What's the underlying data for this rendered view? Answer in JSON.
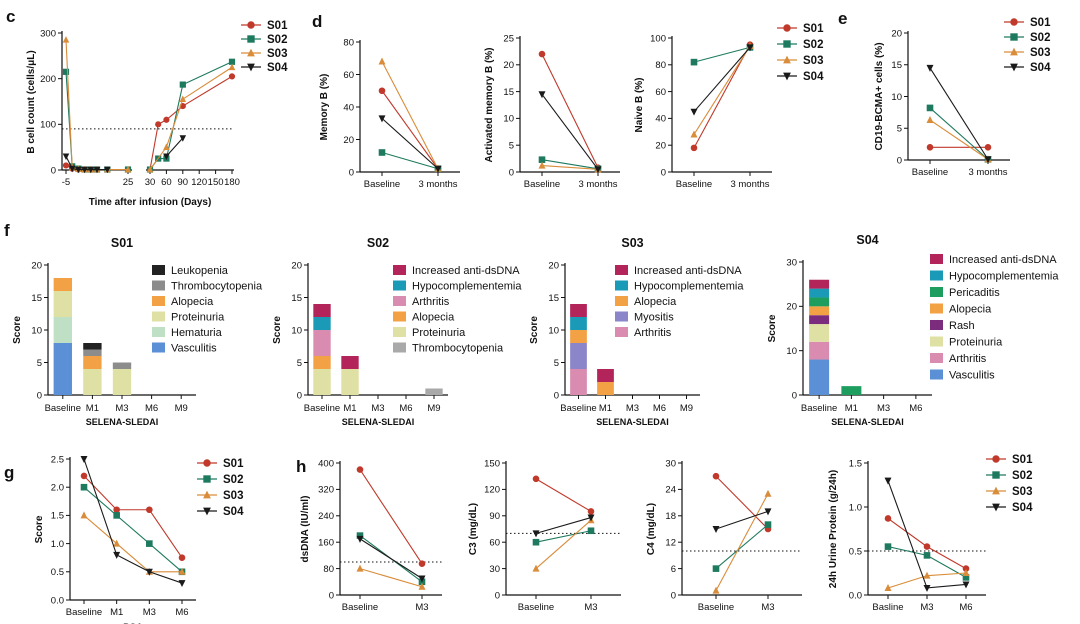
{
  "panel_labels": [
    "c",
    "d",
    "e",
    "f",
    "g",
    "h"
  ],
  "colors": {
    "S01": "#c0392b",
    "S02": "#1e7a5f",
    "S03": "#d98c3a",
    "S04": "#1a1a1a",
    "dotted_reference": "#111111"
  },
  "marker_shapes": {
    "S01": "circle",
    "S02": "square",
    "S03": "triangle-up",
    "S04": "triangle-down"
  },
  "chart_data": [
    {
      "id": "c",
      "type": "line",
      "xlabel": "Time after infusion (Days)",
      "ylabel": "B cell count (cells/μL)",
      "x_axis": "broken",
      "x_segments": [
        [
          -5,
          25
        ],
        [
          30,
          180
        ]
      ],
      "xticks": [
        "-5",
        "25",
        "30",
        "60",
        "90",
        "120",
        "150",
        "180"
      ],
      "yticks": [
        "0",
        "100",
        "200",
        "300"
      ],
      "ylim": [
        0,
        300
      ],
      "reference_line": 90,
      "legend": "right",
      "series": [
        {
          "name": "S01",
          "points": [
            [
              -5,
              10
            ],
            [
              -2,
              3
            ],
            [
              1,
              1
            ],
            [
              4,
              1
            ],
            [
              7,
              1
            ],
            [
              10,
              1
            ],
            [
              15,
              1
            ],
            [
              25,
              1
            ],
            [
              30,
              1
            ],
            [
              45,
              100
            ],
            [
              60,
              110
            ],
            [
              90,
              140
            ],
            [
              180,
              205
            ]
          ]
        },
        {
          "name": "S02",
          "points": [
            [
              -5,
              215
            ],
            [
              -2,
              8
            ],
            [
              1,
              3
            ],
            [
              4,
              1
            ],
            [
              7,
              1
            ],
            [
              10,
              1
            ],
            [
              15,
              1
            ],
            [
              25,
              1
            ],
            [
              30,
              1
            ],
            [
              45,
              25
            ],
            [
              60,
              25
            ],
            [
              90,
              187
            ],
            [
              180,
              237
            ]
          ]
        },
        {
          "name": "S03",
          "points": [
            [
              -5,
              285
            ],
            [
              -2,
              5
            ],
            [
              1,
              2
            ],
            [
              4,
              1
            ],
            [
              7,
              1
            ],
            [
              10,
              1
            ],
            [
              15,
              1
            ],
            [
              25,
              1
            ],
            [
              30,
              1
            ],
            [
              60,
              50
            ],
            [
              90,
              155
            ],
            [
              180,
              225
            ]
          ]
        },
        {
          "name": "S04",
          "points": [
            [
              -5,
              30
            ],
            [
              -2,
              3
            ],
            [
              1,
              1
            ],
            [
              4,
              1
            ],
            [
              7,
              1
            ],
            [
              10,
              1
            ],
            [
              15,
              1
            ],
            [
              60,
              30
            ],
            [
              90,
              70
            ]
          ]
        }
      ]
    },
    {
      "id": "d1",
      "type": "line",
      "categories": [
        "Baseline",
        "3 months"
      ],
      "ylabel": "Memory B (%)",
      "yticks": [
        "0",
        "20",
        "40",
        "60",
        "80"
      ],
      "ylim": [
        0,
        80
      ],
      "series": [
        {
          "name": "S01",
          "values": [
            50,
            2
          ]
        },
        {
          "name": "S02",
          "values": [
            12,
            2
          ]
        },
        {
          "name": "S03",
          "values": [
            68,
            2
          ]
        },
        {
          "name": "S04",
          "values": [
            33,
            2
          ]
        }
      ]
    },
    {
      "id": "d2",
      "type": "line",
      "categories": [
        "Baseline",
        "3 months"
      ],
      "ylabel": "Activated memory B (%)",
      "yticks": [
        "0",
        "5",
        "10",
        "15",
        "20",
        "25"
      ],
      "ylim": [
        0,
        25
      ],
      "series": [
        {
          "name": "S01",
          "values": [
            22,
            0.8
          ]
        },
        {
          "name": "S02",
          "values": [
            2.3,
            0.6
          ]
        },
        {
          "name": "S03",
          "values": [
            1.2,
            0.5
          ]
        },
        {
          "name": "S04",
          "values": [
            14.5,
            0.5
          ]
        }
      ]
    },
    {
      "id": "d3",
      "type": "line",
      "categories": [
        "Baseline",
        "3 months"
      ],
      "ylabel": "Naive B (%)",
      "yticks": [
        "0",
        "20",
        "40",
        "60",
        "80",
        "100"
      ],
      "ylim": [
        0,
        100
      ],
      "legend": "right",
      "series": [
        {
          "name": "S01",
          "values": [
            18,
            95
          ]
        },
        {
          "name": "S02",
          "values": [
            82,
            93
          ]
        },
        {
          "name": "S03",
          "values": [
            28,
            94
          ]
        },
        {
          "name": "S04",
          "values": [
            45,
            93
          ]
        }
      ]
    },
    {
      "id": "e",
      "type": "line",
      "categories": [
        "Baseline",
        "3 months"
      ],
      "ylabel": "CD19-BCMA+ cells (%)",
      "yticks": [
        "0",
        "5",
        "10",
        "15",
        "20"
      ],
      "ylim": [
        0,
        20
      ],
      "legend": "right",
      "series": [
        {
          "name": "S01",
          "values": [
            2,
            2
          ]
        },
        {
          "name": "S02",
          "values": [
            8.2,
            0.1
          ]
        },
        {
          "name": "S03",
          "values": [
            6.3,
            0.1
          ]
        },
        {
          "name": "S04",
          "values": [
            14.5,
            0.1
          ]
        }
      ]
    },
    {
      "id": "f-S01",
      "type": "bar",
      "title": "S01",
      "xlabel": "SELENA-SLEDAI",
      "ylabel": "Score",
      "categories": [
        "Baseline",
        "M1",
        "M3",
        "M6",
        "M9"
      ],
      "yticks": [
        "0",
        "5",
        "10",
        "15",
        "20"
      ],
      "ylim": [
        0,
        20
      ],
      "stack_order": [
        "Vasculitis",
        "Hematuria",
        "Proteinuria",
        "Alopecia",
        "Thrombocytopenia",
        "Leukopenia"
      ],
      "series": [
        {
          "name": "Leukopenia",
          "color": "#222222",
          "values": [
            0,
            1,
            0,
            0,
            0
          ]
        },
        {
          "name": "Thrombocytopenia",
          "color": "#8c8c8c",
          "values": [
            0,
            1,
            1,
            0,
            0
          ]
        },
        {
          "name": "Alopecia",
          "color": "#f2a144",
          "values": [
            2,
            2,
            0,
            0,
            0
          ]
        },
        {
          "name": "Proteinuria",
          "color": "#dfe0a3",
          "values": [
            4,
            4,
            4,
            0,
            0
          ]
        },
        {
          "name": "Hematuria",
          "color": "#bfe0c4",
          "values": [
            4,
            0,
            0,
            0,
            0
          ]
        },
        {
          "name": "Vasculitis",
          "color": "#5b8fd6",
          "values": [
            8,
            0,
            0,
            0,
            0
          ]
        }
      ]
    },
    {
      "id": "f-S02",
      "type": "bar",
      "title": "S02",
      "xlabel": "SELENA-SLEDAI",
      "ylabel": "Score",
      "categories": [
        "Baseline",
        "M1",
        "M3",
        "M6",
        "M9"
      ],
      "yticks": [
        "0",
        "5",
        "10",
        "15",
        "20"
      ],
      "ylim": [
        0,
        20
      ],
      "stack_order": [
        "Proteinuria",
        "Alopecia",
        "Arthritis",
        "Hypocomplementemia",
        "Increased anti-dsDNA",
        "Thrombocytopenia"
      ],
      "series": [
        {
          "name": "Increased anti-dsDNA",
          "color": "#b3245a",
          "values": [
            2,
            2,
            0,
            0,
            0
          ]
        },
        {
          "name": "Hypocomplementemia",
          "color": "#1b9ab8",
          "values": [
            2,
            0,
            0,
            0,
            0
          ]
        },
        {
          "name": "Arthritis",
          "color": "#d98bb0",
          "values": [
            4,
            0,
            0,
            0,
            0
          ]
        },
        {
          "name": "Alopecia",
          "color": "#f2a144",
          "values": [
            2,
            0,
            0,
            0,
            0
          ]
        },
        {
          "name": "Proteinuria",
          "color": "#dfe0a3",
          "values": [
            4,
            4,
            0,
            0,
            0
          ]
        },
        {
          "name": "Thrombocytopenia",
          "color": "#a9a9a9",
          "values": [
            0,
            0,
            0,
            0,
            1
          ]
        }
      ]
    },
    {
      "id": "f-S03",
      "type": "bar",
      "title": "S03",
      "xlabel": "SELENA-SLEDAI",
      "ylabel": "Score",
      "categories": [
        "Baseline",
        "M1",
        "M3",
        "M6",
        "M9"
      ],
      "yticks": [
        "0",
        "5",
        "10",
        "15",
        "20"
      ],
      "ylim": [
        0,
        20
      ],
      "stack_order": [
        "Arthritis",
        "Myositis",
        "Alopecia",
        "Hypocomplementemia",
        "Increased anti-dsDNA"
      ],
      "series": [
        {
          "name": "Increased anti-dsDNA",
          "color": "#b3245a",
          "values": [
            2,
            2,
            0,
            0,
            0
          ]
        },
        {
          "name": "Hypocomplementemia",
          "color": "#1b9ab8",
          "values": [
            2,
            0,
            0,
            0,
            0
          ]
        },
        {
          "name": "Alopecia",
          "color": "#f2a144",
          "values": [
            2,
            2,
            0,
            0,
            0
          ]
        },
        {
          "name": "Myositis",
          "color": "#8a86c9",
          "values": [
            4,
            0,
            0,
            0,
            0
          ]
        },
        {
          "name": "Arthritis",
          "color": "#d98bb0",
          "values": [
            4,
            0,
            0,
            0,
            0
          ]
        }
      ]
    },
    {
      "id": "f-S04",
      "type": "bar",
      "title": "S04",
      "xlabel": "SELENA-SLEDAI",
      "ylabel": "Score",
      "categories": [
        "Baseline",
        "M1",
        "M3",
        "M6"
      ],
      "yticks": [
        "0",
        "10",
        "20",
        "30"
      ],
      "ylim": [
        0,
        30
      ],
      "stack_order": [
        "Vasculitis",
        "Arthritis",
        "Proteinuria",
        "Rash",
        "Alopecia",
        "Pericaditis",
        "Hypocomplementemia",
        "Increased anti-dsDNA"
      ],
      "series": [
        {
          "name": "Increased anti-dsDNA",
          "color": "#b3245a",
          "values": [
            2,
            0,
            0,
            0
          ]
        },
        {
          "name": "Hypocomplementemia",
          "color": "#1b9ab8",
          "values": [
            2,
            0,
            0,
            0
          ]
        },
        {
          "name": "Pericaditis",
          "color": "#1e9e5e",
          "values": [
            2,
            2,
            0,
            0
          ]
        },
        {
          "name": "Alopecia",
          "color": "#f2a144",
          "values": [
            2,
            0,
            0,
            0
          ]
        },
        {
          "name": "Rash",
          "color": "#7b2c7d",
          "values": [
            2,
            0,
            0,
            0
          ]
        },
        {
          "name": "Proteinuria",
          "color": "#dfe0a3",
          "values": [
            4,
            0,
            0,
            0
          ]
        },
        {
          "name": "Arthritis",
          "color": "#d98bb0",
          "values": [
            4,
            0,
            0,
            0
          ]
        },
        {
          "name": "Vasculitis",
          "color": "#5b8fd6",
          "values": [
            8,
            0,
            0,
            0
          ]
        }
      ]
    },
    {
      "id": "g",
      "type": "line",
      "xlabel": "PGA",
      "ylabel": "Score",
      "categories": [
        "Baseline",
        "M1",
        "M3",
        "M6"
      ],
      "yticks": [
        "0.0",
        "0.5",
        "1.0",
        "1.5",
        "2.0",
        "2.5"
      ],
      "ylim": [
        0,
        2.5
      ],
      "legend": "right",
      "series": [
        {
          "name": "S01",
          "values": [
            2.2,
            1.6,
            1.6,
            0.75
          ]
        },
        {
          "name": "S02",
          "values": [
            2.0,
            1.5,
            1.0,
            0.5
          ]
        },
        {
          "name": "S03",
          "values": [
            1.5,
            1.0,
            0.5,
            0.5
          ]
        },
        {
          "name": "S04",
          "values": [
            2.5,
            0.8,
            0.5,
            0.3
          ]
        }
      ]
    },
    {
      "id": "h1",
      "type": "line",
      "ylabel": "dsDNA (IU/ml)",
      "categories": [
        "Baseline",
        "M3"
      ],
      "yticks": [
        "0",
        "80",
        "160",
        "240",
        "320",
        "400"
      ],
      "ylim": [
        0,
        400
      ],
      "reference_line": 100,
      "series": [
        {
          "name": "S01",
          "values": [
            380,
            95
          ]
        },
        {
          "name": "S02",
          "values": [
            180,
            40
          ]
        },
        {
          "name": "S03",
          "values": [
            80,
            25
          ]
        },
        {
          "name": "S04",
          "values": [
            170,
            50
          ]
        }
      ]
    },
    {
      "id": "h2",
      "type": "line",
      "ylabel": "C3 (mg/dL)",
      "categories": [
        "Baseline",
        "M3"
      ],
      "yticks": [
        "0",
        "30",
        "60",
        "90",
        "120",
        "150"
      ],
      "ylim": [
        0,
        150
      ],
      "reference_line": 70,
      "series": [
        {
          "name": "S01",
          "values": [
            132,
            95
          ]
        },
        {
          "name": "S02",
          "values": [
            60,
            73
          ]
        },
        {
          "name": "S03",
          "values": [
            30,
            85
          ]
        },
        {
          "name": "S04",
          "values": [
            70,
            88
          ]
        }
      ]
    },
    {
      "id": "h3",
      "type": "line",
      "ylabel": "C4 (mg/dL)",
      "categories": [
        "Baseline",
        "M3"
      ],
      "yticks": [
        "0",
        "6",
        "12",
        "18",
        "24",
        "30"
      ],
      "ylim": [
        0,
        30
      ],
      "reference_line": 10,
      "series": [
        {
          "name": "S01",
          "values": [
            27,
            15
          ]
        },
        {
          "name": "S02",
          "values": [
            6,
            16
          ]
        },
        {
          "name": "S03",
          "values": [
            1,
            23
          ]
        },
        {
          "name": "S04",
          "values": [
            15,
            19
          ]
        }
      ]
    },
    {
      "id": "h4",
      "type": "line",
      "ylabel": "24h Urine Protein (g/24h)",
      "categories": [
        "Basline",
        "M3",
        "M6"
      ],
      "yticks": [
        "0.0",
        "0.5",
        "1.0",
        "1.5"
      ],
      "ylim": [
        0,
        1.5
      ],
      "reference_line": 0.5,
      "legend": "right",
      "series": [
        {
          "name": "S01",
          "values": [
            0.87,
            0.55,
            0.3
          ]
        },
        {
          "name": "S02",
          "values": [
            0.55,
            0.45,
            0.2
          ]
        },
        {
          "name": "S03",
          "values": [
            0.08,
            0.22,
            0.25
          ]
        },
        {
          "name": "S04",
          "values": [
            1.3,
            0.08,
            0.12
          ]
        }
      ]
    }
  ]
}
